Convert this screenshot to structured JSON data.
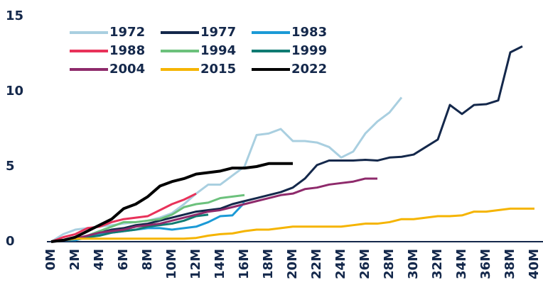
{
  "chart_data": {
    "type": "line",
    "x": [
      0,
      1,
      2,
      3,
      4,
      5,
      6,
      7,
      8,
      9,
      10,
      11,
      12,
      13,
      14,
      15,
      16,
      17,
      18,
      19,
      20,
      21,
      22,
      23,
      24,
      25,
      26,
      27,
      28,
      29,
      30,
      31,
      32,
      33,
      34,
      35,
      36,
      37,
      38,
      39,
      40
    ],
    "xlim": [
      0,
      40
    ],
    "xticks": [
      {
        "value": 0,
        "label": "0M"
      },
      {
        "value": 2,
        "label": "2M"
      },
      {
        "value": 4,
        "label": "4M"
      },
      {
        "value": 6,
        "label": "6M"
      },
      {
        "value": 8,
        "label": "8M"
      },
      {
        "value": 10,
        "label": "10M"
      },
      {
        "value": 12,
        "label": "12M"
      },
      {
        "value": 14,
        "label": "14M"
      },
      {
        "value": 16,
        "label": "16M"
      },
      {
        "value": 18,
        "label": "18M"
      },
      {
        "value": 20,
        "label": "20M"
      },
      {
        "value": 22,
        "label": "22M"
      },
      {
        "value": 24,
        "label": "24M"
      },
      {
        "value": 26,
        "label": "26M"
      },
      {
        "value": 28,
        "label": "28M"
      },
      {
        "value": 30,
        "label": "30M"
      },
      {
        "value": 32,
        "label": "32M"
      },
      {
        "value": 34,
        "label": "34M"
      },
      {
        "value": 36,
        "label": "36M"
      },
      {
        "value": 38,
        "label": "38M"
      },
      {
        "value": 40,
        "label": "40M"
      }
    ],
    "ylim": [
      0,
      15
    ],
    "yticks": [
      0,
      5,
      10,
      15
    ],
    "grid": false,
    "series": [
      {
        "name": "1972",
        "color": "#a9cfe0",
        "values": [
          0,
          0.5,
          0.8,
          0.9,
          1.0,
          1.1,
          1.2,
          1.3,
          1.4,
          1.6,
          1.9,
          2.5,
          3.2,
          3.8,
          3.8,
          4.4,
          5.0,
          7.1,
          7.2,
          7.5,
          6.7,
          6.7,
          6.6,
          6.3,
          5.6,
          6.0,
          7.2,
          8.0,
          8.6,
          9.6,
          null,
          null,
          null,
          null,
          null,
          null,
          null,
          null,
          null,
          null,
          null
        ]
      },
      {
        "name": "1977",
        "color": "#14284b",
        "values": [
          0,
          0.1,
          0.2,
          0.4,
          0.6,
          0.8,
          0.9,
          1.1,
          1.2,
          1.4,
          1.6,
          1.8,
          2.0,
          2.1,
          2.2,
          2.5,
          2.7,
          2.9,
          3.1,
          3.3,
          3.6,
          4.2,
          5.1,
          5.4,
          5.4,
          5.4,
          5.45,
          5.4,
          5.6,
          5.65,
          5.8,
          6.3,
          6.8,
          9.1,
          8.5,
          9.1,
          9.15,
          9.4,
          12.6,
          13.0,
          null
        ]
      },
      {
        "name": "1983",
        "color": "#1b9ad6",
        "values": [
          0,
          0.1,
          0.1,
          0.3,
          0.5,
          0.6,
          0.7,
          0.8,
          0.9,
          0.9,
          0.8,
          0.9,
          1.0,
          1.3,
          1.7,
          1.75,
          2.6,
          null,
          null,
          null,
          null,
          null,
          null,
          null,
          null,
          null,
          null,
          null,
          null,
          null,
          null,
          null,
          null,
          null,
          null,
          null,
          null,
          null,
          null,
          null,
          null
        ]
      },
      {
        "name": "1988",
        "color": "#e8325a",
        "values": [
          0,
          0.3,
          0.5,
          0.9,
          1.0,
          1.3,
          1.5,
          1.6,
          1.7,
          2.1,
          2.5,
          2.8,
          3.2,
          null,
          null,
          null,
          null,
          null,
          null,
          null,
          null,
          null,
          null,
          null,
          null,
          null,
          null,
          null,
          null,
          null,
          null,
          null,
          null,
          null,
          null,
          null,
          null,
          null,
          null,
          null,
          null
        ]
      },
      {
        "name": "1994",
        "color": "#6cc17c",
        "values": [
          0,
          0.1,
          0.2,
          0.4,
          0.7,
          1.0,
          1.3,
          1.3,
          1.4,
          1.5,
          1.8,
          2.3,
          2.5,
          2.6,
          2.9,
          3.0,
          3.1,
          null,
          null,
          null,
          null,
          null,
          null,
          null,
          null,
          null,
          null,
          null,
          null,
          null,
          null,
          null,
          null,
          null,
          null,
          null,
          null,
          null,
          null,
          null,
          null
        ]
      },
      {
        "name": "1999",
        "color": "#0f7b72",
        "values": [
          0,
          0.1,
          0.2,
          0.3,
          0.4,
          0.6,
          0.7,
          0.8,
          1.0,
          1.1,
          1.2,
          1.4,
          1.7,
          1.8,
          null,
          null,
          null,
          null,
          null,
          null,
          null,
          null,
          null,
          null,
          null,
          null,
          null,
          null,
          null,
          null,
          null,
          null,
          null,
          null,
          null,
          null,
          null,
          null,
          null,
          null,
          null
        ]
      },
      {
        "name": "2004",
        "color": "#8e2a6b",
        "values": [
          0,
          0.1,
          0.2,
          0.4,
          0.6,
          0.7,
          0.8,
          1.0,
          1.1,
          1.2,
          1.4,
          1.6,
          1.8,
          2.0,
          2.1,
          2.3,
          2.5,
          2.7,
          2.9,
          3.1,
          3.2,
          3.5,
          3.6,
          3.8,
          3.9,
          4.0,
          4.2,
          4.2,
          null,
          null,
          null,
          null,
          null,
          null,
          null,
          null,
          null,
          null,
          null,
          null,
          null
        ]
      },
      {
        "name": "2015",
        "color": "#f5b400",
        "values": [
          0,
          0.1,
          0.2,
          0.2,
          0.2,
          0.2,
          0.2,
          0.2,
          0.2,
          0.2,
          0.2,
          0.2,
          0.25,
          0.4,
          0.5,
          0.55,
          0.7,
          0.8,
          0.8,
          0.9,
          1.0,
          1.0,
          1.0,
          1.0,
          1.0,
          1.1,
          1.2,
          1.2,
          1.3,
          1.5,
          1.5,
          1.6,
          1.7,
          1.7,
          1.75,
          2.0,
          2.0,
          2.1,
          2.2,
          2.2,
          2.2
        ]
      },
      {
        "name": "2022",
        "color": "#000000",
        "values": [
          0,
          0.1,
          0.3,
          0.7,
          1.1,
          1.5,
          2.2,
          2.5,
          3.0,
          3.7,
          4.0,
          4.2,
          4.5,
          4.6,
          4.7,
          4.9,
          4.9,
          5.0,
          5.2,
          5.2,
          5.2,
          null,
          null,
          null,
          null,
          null,
          null,
          null,
          null,
          null,
          null,
          null,
          null,
          null,
          null,
          null,
          null,
          null,
          null,
          null,
          null
        ]
      }
    ]
  }
}
